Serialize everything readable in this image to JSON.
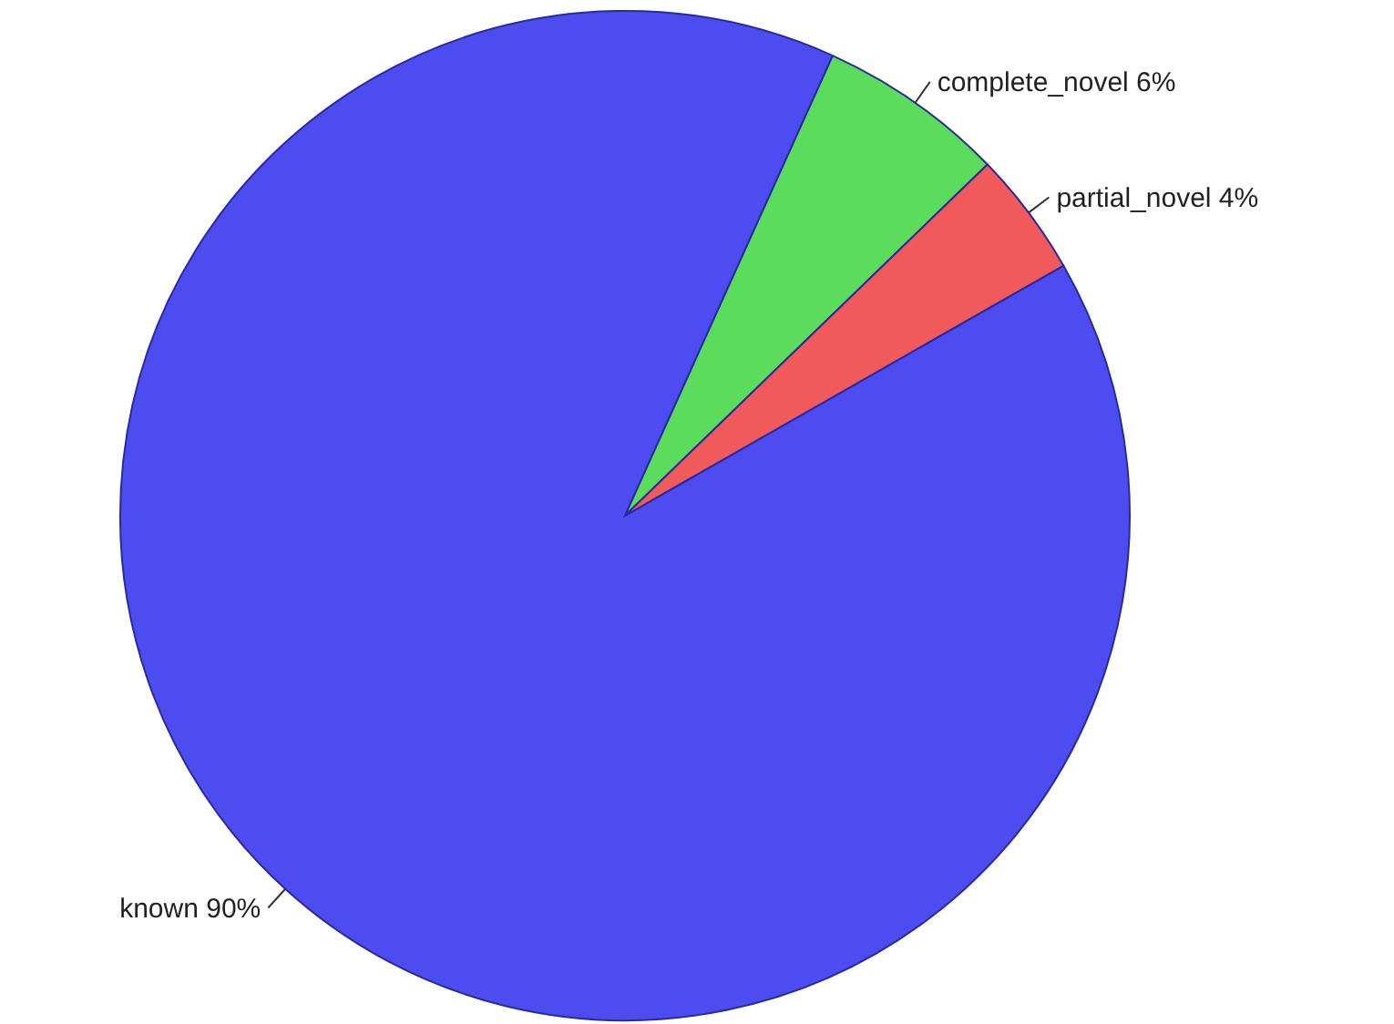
{
  "chart_data": {
    "type": "pie",
    "categories": [
      "known",
      "complete_novel",
      "partial_novel"
    ],
    "values": [
      90,
      6,
      4
    ],
    "value_labels": [
      "90%",
      "6%",
      "4%"
    ],
    "colors": [
      "#4c4cf0",
      "#5cdc5c",
      "#f05a5a"
    ]
  }
}
